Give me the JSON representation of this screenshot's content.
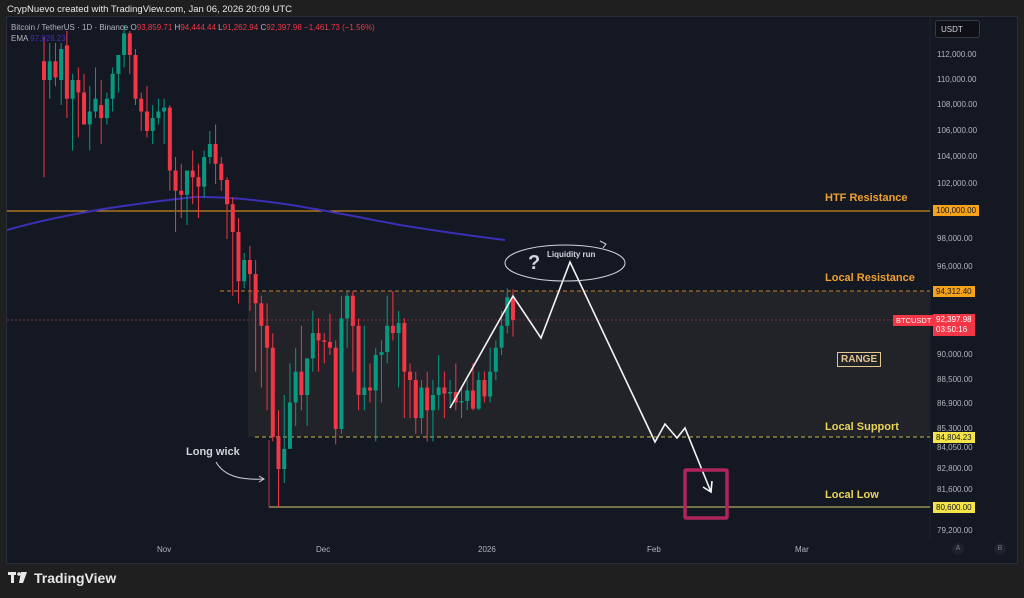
{
  "header": {
    "credit": "CrypNuevo created with TradingView.com, Jan 06, 2026 20:09 UTC"
  },
  "legend": {
    "symbol": "Bitcoin / TetherUS · 1D · Binance",
    "open_label": "O",
    "open": "93,859.71",
    "high_label": "H",
    "high": "94,444.44",
    "low_label": "L",
    "low": "91,262.94",
    "close_label": "C",
    "close": "92,397.98",
    "change": "−1,461.73 (−1.56%)",
    "ema_label": "EMA",
    "ema_value": "97,928.23"
  },
  "price_axis": {
    "currency_button": "USDT",
    "ticks": [
      "112,000.00",
      "110,000.00",
      "108,000.00",
      "106,000.00",
      "104,000.00",
      "102,000.00",
      "98,000.00",
      "96,000.00",
      "90,000.00",
      "88,500.00",
      "86,900.00",
      "85,300.00",
      "84,050.00",
      "82,800.00",
      "81,600.00",
      "79,200.00"
    ],
    "tags": {
      "htf_resistance": "100,000.00",
      "local_resistance": "94,312.40",
      "last_price": "92,397.98",
      "countdown": "03:50:16",
      "local_support": "84,804.23",
      "local_low": "80,600.00"
    },
    "symbol_tag": "BTCUSDT"
  },
  "time_axis": {
    "labels": [
      "Nov",
      "Dec",
      "2026",
      "Feb",
      "Mar"
    ],
    "buttons": [
      "A",
      "B"
    ]
  },
  "annotations": {
    "htf_resistance": "HTF Resistance",
    "local_resistance": "Local Resistance",
    "range": "RANGE",
    "local_support": "Local Support",
    "local_low": "Local Low",
    "long_wick": "Long wick",
    "liquidity_run": "Liquidity run",
    "question": "?"
  },
  "colors": {
    "up": "#089981",
    "down": "#f23645",
    "ema": "#3d2fb5",
    "htf_line": "#f7a21b",
    "support_line": "#e8d45a",
    "target_box": "#b0245c"
  },
  "branding": {
    "name": "TradingView"
  },
  "chart_data": {
    "type": "candlestick",
    "title": "Bitcoin / TetherUS · 1D · Binance",
    "xlabel": "",
    "ylabel": "USDT",
    "x_ticks": [
      "Nov",
      "Dec",
      "2026",
      "Feb",
      "Mar"
    ],
    "ylim": [
      78500,
      113000
    ],
    "y_scale": "log",
    "last": {
      "open": 93859.71,
      "high": 94444.44,
      "low": 91262.94,
      "close": 92397.98,
      "change": -1461.73,
      "change_pct": -1.56
    },
    "ema": 97928.23,
    "levels": [
      {
        "name": "HTF Resistance",
        "price": 100000.0
      },
      {
        "name": "Local Resistance",
        "price": 94312.4
      },
      {
        "name": "Local Support",
        "price": 84804.23
      },
      {
        "name": "Local Low",
        "price": 80600.0
      }
    ],
    "range_zone": {
      "top": 94312.4,
      "bottom": 84804.23,
      "label": "RANGE"
    },
    "projection_path_prices": [
      94300,
      91600,
      96300,
      84800,
      85800,
      84800,
      81800
    ],
    "candles": [
      [
        111500,
        113500,
        102500,
        110000
      ],
      [
        110000,
        113000,
        108500,
        111500
      ],
      [
        111500,
        113000,
        109500,
        110200
      ],
      [
        110000,
        113000,
        108000,
        112500
      ],
      [
        112800,
        114000,
        107000,
        108500
      ],
      [
        108500,
        110500,
        104500,
        110000
      ],
      [
        110000,
        111000,
        105500,
        109000
      ],
      [
        109000,
        110500,
        107000,
        106500
      ],
      [
        106500,
        109500,
        104500,
        107500
      ],
      [
        107500,
        111000,
        107000,
        108500
      ],
      [
        108000,
        110000,
        105000,
        107000
      ],
      [
        107000,
        109000,
        106500,
        108500
      ],
      [
        108500,
        111000,
        107500,
        110500
      ],
      [
        110500,
        112000,
        109000,
        112000
      ],
      [
        112000,
        114500,
        111000,
        113800
      ],
      [
        113800,
        114000,
        110500,
        112000
      ],
      [
        112000,
        112500,
        108000,
        108500
      ],
      [
        108500,
        109000,
        106000,
        107500
      ],
      [
        107500,
        109500,
        105500,
        106000
      ],
      [
        106000,
        108000,
        105000,
        107000
      ],
      [
        107000,
        108500,
        106500,
        107500
      ],
      [
        107500,
        108500,
        105000,
        107800
      ],
      [
        107800,
        108000,
        101500,
        103000
      ],
      [
        103000,
        104000,
        98500,
        101500
      ],
      [
        101500,
        103500,
        99500,
        101200
      ],
      [
        101200,
        102000,
        99000,
        103000
      ],
      [
        103000,
        104500,
        100500,
        102500
      ],
      [
        102500,
        103500,
        99500,
        101800
      ],
      [
        101800,
        104500,
        101000,
        104000
      ],
      [
        104000,
        106000,
        103500,
        105000
      ],
      [
        105000,
        106500,
        102000,
        103500
      ],
      [
        103500,
        104000,
        101500,
        102300
      ],
      [
        102300,
        102500,
        98000,
        100500
      ],
      [
        100500,
        101000,
        94000,
        98500
      ],
      [
        98500,
        99500,
        93500,
        95000
      ],
      [
        95000,
        97000,
        94500,
        96500
      ],
      [
        96500,
        97500,
        93000,
        95500
      ],
      [
        95500,
        96500,
        89000,
        93500
      ],
      [
        93500,
        94000,
        88000,
        92000
      ],
      [
        92000,
        93500,
        86500,
        90500
      ],
      [
        90500,
        91500,
        84500,
        84800
      ],
      [
        84800,
        86500,
        80600,
        82800
      ],
      [
        82800,
        87500,
        82000,
        84000
      ],
      [
        84000,
        89500,
        84000,
        87000
      ],
      [
        87000,
        90500,
        85500,
        89000
      ],
      [
        89000,
        92000,
        86500,
        87500
      ],
      [
        87500,
        88500,
        85500,
        89800
      ],
      [
        89800,
        93000,
        89000,
        91500
      ],
      [
        91500,
        92500,
        89000,
        91000
      ],
      [
        91000,
        91500,
        89500,
        90900
      ],
      [
        90900,
        92800,
        90000,
        90500
      ],
      [
        90500,
        91000,
        84300,
        85300
      ],
      [
        85300,
        94000,
        85000,
        92500
      ],
      [
        92500,
        94300,
        90500,
        94000
      ],
      [
        94000,
        94300,
        89000,
        92000
      ],
      [
        92000,
        92500,
        86500,
        87500
      ],
      [
        87500,
        92000,
        86500,
        88000
      ],
      [
        88000,
        89500,
        87000,
        87800
      ],
      [
        87800,
        90500,
        84500,
        90000
      ],
      [
        90000,
        91000,
        87000,
        90200
      ],
      [
        90200,
        94000,
        89500,
        92000
      ],
      [
        92000,
        94300,
        91000,
        91500
      ],
      [
        91500,
        93000,
        88000,
        92200
      ],
      [
        92200,
        92500,
        86000,
        89000
      ],
      [
        89000,
        89500,
        86000,
        88500
      ],
      [
        88500,
        89000,
        85000,
        86000
      ],
      [
        86000,
        88500,
        85000,
        88000
      ],
      [
        88000,
        89000,
        84500,
        86500
      ],
      [
        86500,
        88500,
        84500,
        87500
      ],
      [
        87500,
        90000,
        86500,
        88000
      ],
      [
        88000,
        89000,
        86000,
        87600
      ],
      [
        87600,
        88500,
        86800,
        87700
      ],
      [
        87700,
        89500,
        86500,
        87000
      ],
      [
        87000,
        88000,
        86000,
        87100
      ],
      [
        87100,
        88500,
        86500,
        87800
      ],
      [
        87800,
        89500,
        86500,
        86600
      ],
      [
        86600,
        89000,
        86500,
        88500
      ],
      [
        88500,
        89000,
        87000,
        87400
      ],
      [
        87400,
        90500,
        87000,
        89000
      ],
      [
        89000,
        91000,
        88500,
        90500
      ],
      [
        90500,
        93000,
        90000,
        92000
      ],
      [
        92000,
        94500,
        91500,
        93900
      ],
      [
        93900,
        94444,
        91263,
        92398
      ]
    ]
  }
}
